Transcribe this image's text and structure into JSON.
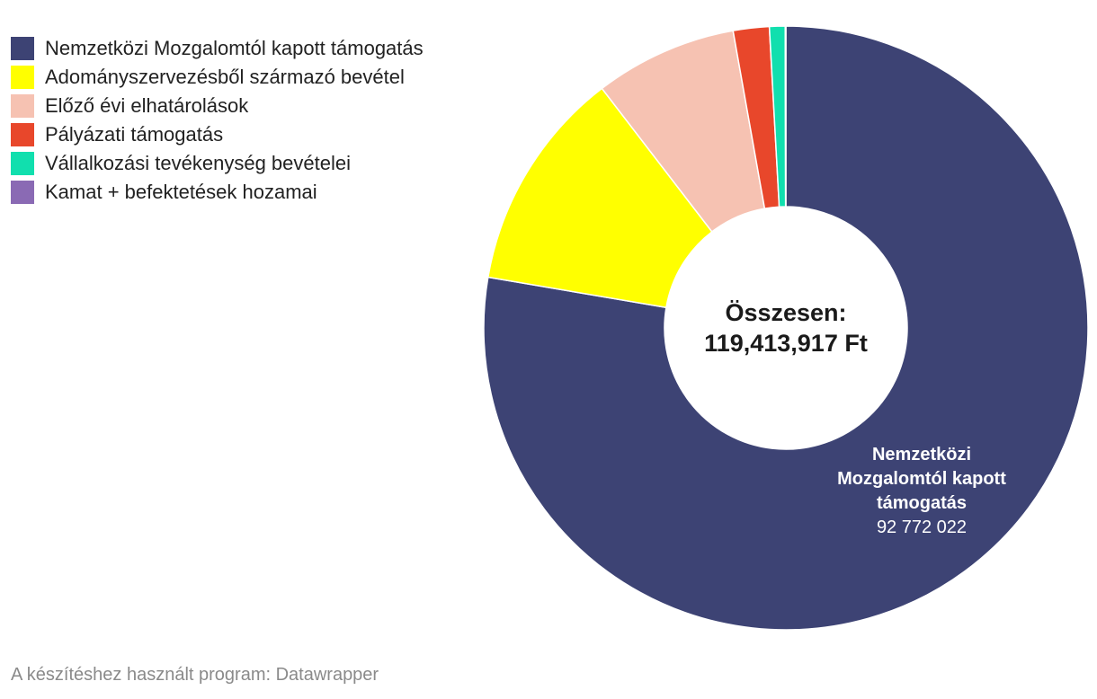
{
  "chart_data": {
    "type": "pie",
    "subtype": "donut",
    "categories": [
      "Nemzetközi Mozgalomtól kapott támogatás",
      "Adományszervezésből származó bevétel",
      "Előző évi elhatárolások",
      "Pályázati támogatás",
      "Vállalkozási tevékenység bevételei",
      "Kamat + befektetések hozamai"
    ],
    "values": [
      92772022,
      14200000,
      9100000,
      2300000,
      1000000,
      41895
    ],
    "colors": [
      "#3d4374",
      "#ffff00",
      "#f6c2b2",
      "#e8472b",
      "#11dfae",
      "#8a6ab4"
    ],
    "center_label": {
      "line1": "Összesen:",
      "line2": "119,413,917 Ft"
    },
    "slice_labels": [
      {
        "index": 0,
        "name_lines": [
          "Nemzetközi",
          "Mozgalomtól kapott",
          "támogatás"
        ],
        "value": "92 772 022"
      }
    ],
    "legend_position": "top-left"
  },
  "footer": "A készítéshez használt program: Datawrapper"
}
